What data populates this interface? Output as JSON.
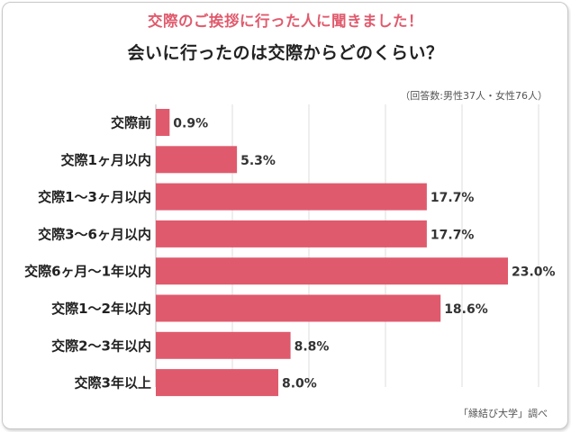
{
  "colors": {
    "bar": "#e05a6d",
    "title_accent": "#e05a6d",
    "gridline": "#dedede"
  },
  "header": {
    "title_line1": "交際のご挨拶に行った人に聞きました！",
    "title_line2": "会いに行ったのは交際からどのくらい？",
    "sample_note": "（回答数:男性37人・女性76人）"
  },
  "footer": {
    "source": "「縁結び大学」調べ"
  },
  "chart_data": {
    "type": "bar",
    "orientation": "horizontal",
    "title": "会いに行ったのは交際からどのくらい？",
    "categories": [
      "交際前",
      "交際1ヶ月以内",
      "交際1〜3ヶ月以内",
      "交際3〜6ヶ月以内",
      "交際6ヶ月〜1年以内",
      "交際1〜2年以内",
      "交際2〜3年以内",
      "交際3年以上"
    ],
    "values": [
      0.9,
      5.3,
      17.7,
      17.7,
      23.0,
      18.6,
      8.8,
      8.0
    ],
    "value_labels": [
      "0.9%",
      "5.3%",
      "17.7%",
      "17.7%",
      "23.0%",
      "18.6%",
      "8.8%",
      "8.0%"
    ],
    "unit": "%",
    "xlim": [
      0,
      25
    ],
    "grid": true
  }
}
